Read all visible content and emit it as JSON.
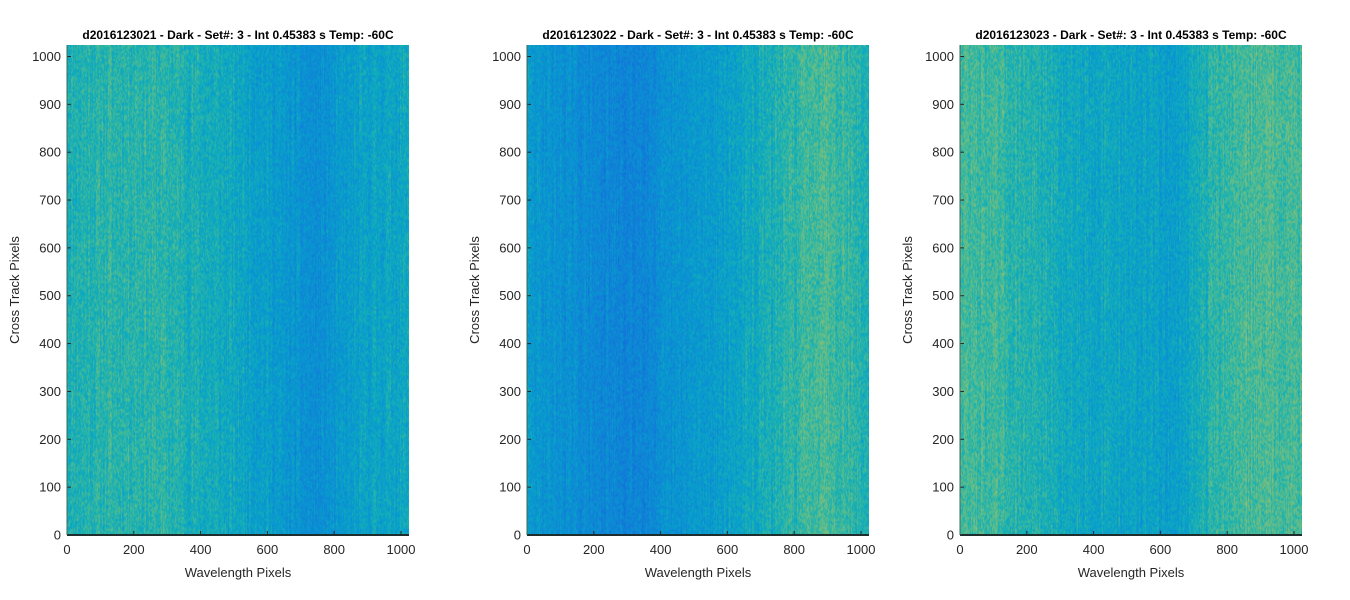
{
  "chart_data": [
    {
      "type": "heatmap",
      "title": "d2016123021 - Dark - Set#: 3 - Int 0.45383 s Temp: -60C",
      "xlabel": "Wavelength Pixels",
      "ylabel": "Cross Track Pixels",
      "xlim": [
        0,
        1024
      ],
      "ylim": [
        0,
        1024
      ],
      "xticks": [
        0,
        200,
        400,
        600,
        800,
        1000
      ],
      "yticks": [
        0,
        100,
        200,
        300,
        400,
        500,
        600,
        700,
        800,
        900,
        1000
      ],
      "colormap": "parula",
      "column_profile": {
        "x": [
          0,
          100,
          200,
          300,
          400,
          500,
          600,
          700,
          750,
          800,
          900,
          1024
        ],
        "level": [
          0.55,
          0.57,
          0.58,
          0.57,
          0.53,
          0.5,
          0.46,
          0.4,
          0.38,
          0.42,
          0.48,
          0.5
        ]
      }
    },
    {
      "type": "heatmap",
      "title": "d2016123022 - Dark - Set#: 3 - Int 0.45383 s Temp: -60C",
      "xlabel": "Wavelength Pixels",
      "ylabel": "Cross Track Pixels",
      "xlim": [
        0,
        1024
      ],
      "ylim": [
        0,
        1024
      ],
      "xticks": [
        0,
        200,
        400,
        600,
        800,
        1000
      ],
      "yticks": [
        0,
        100,
        200,
        300,
        400,
        500,
        600,
        700,
        800,
        900,
        1000
      ],
      "colormap": "parula",
      "column_profile": {
        "x": [
          0,
          100,
          200,
          300,
          400,
          500,
          600,
          700,
          800,
          880,
          950,
          1024
        ],
        "level": [
          0.44,
          0.4,
          0.36,
          0.33,
          0.38,
          0.43,
          0.47,
          0.52,
          0.58,
          0.64,
          0.6,
          0.54
        ]
      }
    },
    {
      "type": "heatmap",
      "title": "d2016123023 - Dark - Set#: 3 - Int 0.45383 s Temp: -60C",
      "xlabel": "Wavelength Pixels",
      "ylabel": "Cross Track Pixels",
      "xlim": [
        0,
        1024
      ],
      "ylim": [
        0,
        1024
      ],
      "xticks": [
        0,
        200,
        400,
        600,
        800,
        1000
      ],
      "yticks": [
        0,
        100,
        200,
        300,
        400,
        500,
        600,
        700,
        800,
        900,
        1000
      ],
      "colormap": "parula",
      "column_profile": {
        "x": [
          0,
          100,
          200,
          300,
          400,
          500,
          600,
          650,
          700,
          800,
          900,
          1024
        ],
        "level": [
          0.62,
          0.6,
          0.56,
          0.52,
          0.5,
          0.49,
          0.47,
          0.46,
          0.52,
          0.6,
          0.63,
          0.62
        ]
      }
    }
  ]
}
